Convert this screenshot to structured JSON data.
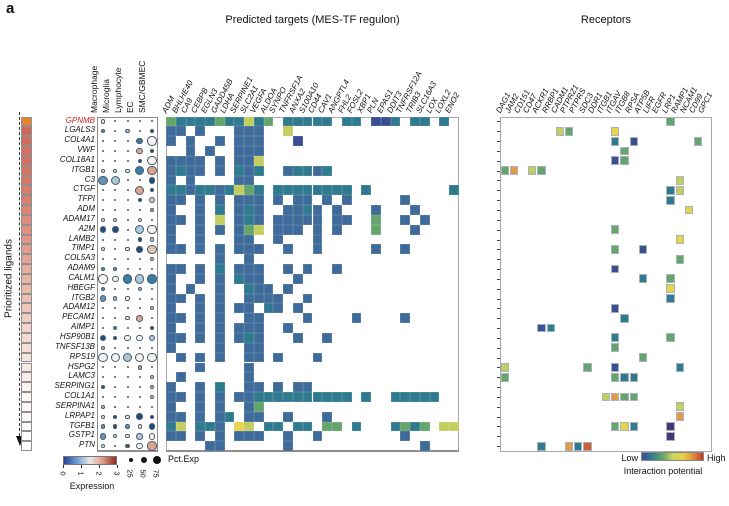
{
  "panel_label": "a",
  "titles": {
    "targets": "Predicted targets (MES-TF regulon)",
    "receptors": "Receptors"
  },
  "left_axis": {
    "label": "Prioritized ligands"
  },
  "legends": {
    "expression": {
      "label": "Expression",
      "ticks": [
        "0",
        "1",
        "2",
        "3"
      ]
    },
    "pct": {
      "label": "Pct.Exp",
      "sizes": [
        "25",
        "50",
        "75"
      ]
    },
    "interaction": {
      "label": "Interaction potential",
      "low": "Low",
      "high": "High"
    }
  },
  "colors": {
    "highlight": "#c8281e",
    "heat": {
      "b": "#3e6b9a",
      "t": "#2f7a8e",
      "n": "#3a4f92",
      "g": "#65a46c",
      "y": "#c3cd60",
      "Y": "#e6d44d",
      "o": "#e29a4b",
      "r": "#d05c35",
      "p": "#46397a"
    },
    "dot": {
      "W": "#f4f3f1",
      "L": "#aac8dc",
      "B": "#6292ba",
      "T": "#3a7da2",
      "D": "#1d4c80",
      "P": "#dda291",
      "N": "#dcc8b4",
      "G": "#555555"
    },
    "expression_gradient": [
      "#27418e",
      "#6f9fd8",
      "#eceae8",
      "#d99a82",
      "#8e2a1a"
    ],
    "interaction_gradient": [
      "#3a4f92",
      "#2f7d8e",
      "#62a36a",
      "#c9d05e",
      "#e8d44a",
      "#e0923e",
      "#c93524"
    ],
    "priority_stops": [
      "#e8822e",
      "#d2685a",
      "#d67767",
      "#e09483",
      "#eab9a8",
      "#f4ddd3",
      "#fcf7f4",
      "#ffffff"
    ]
  },
  "chart_data": [
    {
      "type": "scatter",
      "name": "ligand-expression-dotplot",
      "cell_types": [
        "Macrophage",
        "Microglia",
        "Lymphocyte",
        "EC",
        "SMC/GBMEC"
      ],
      "highlight_ligand": "GPNMB",
      "ligands": [
        "GPNMB",
        "LGALS3",
        "COL4A1",
        "VWF",
        "COL18A1",
        "ITGB1",
        "C3",
        "CTGF",
        "TFPI",
        "ADM",
        "ADAM17",
        "A2M",
        "LAMB2",
        "TIMP1",
        "COL5A3",
        "ADAM9",
        "CALM1",
        "HBEGF",
        "ITGB2",
        "ADAM12",
        "PECAM1",
        "AIMP1",
        "HSP90B1",
        "TNFSF13B",
        "RPS19",
        "HSPG2",
        "LAMC3",
        "SERPING1",
        "COL1A1",
        "SERPINA1",
        "LRPAP1",
        "TGFB1",
        "GSTP1",
        "PTN"
      ],
      "dots": [
        [
          "1W",
          "0G",
          "0G",
          "0G",
          "0G"
        ],
        [
          "1B",
          "0G",
          "1L",
          "0G",
          "1D"
        ],
        [
          "0G",
          "0G",
          "0G",
          "2T",
          "3W"
        ],
        [
          "0G",
          "0G",
          "0G",
          "2P",
          "1D"
        ],
        [
          "0G",
          "0G",
          "0G",
          "1D",
          "3W"
        ],
        [
          "1W",
          "1W",
          "1W",
          "3T",
          "3P"
        ],
        [
          "3B",
          "3L",
          "0G",
          "0G",
          "2D"
        ],
        [
          "0G",
          "0G",
          "0G",
          "3P",
          "1D"
        ],
        [
          "0G",
          "0G",
          "0G",
          "1D",
          "2N"
        ],
        [
          "0G",
          "0G",
          "0G",
          "0G",
          "1P"
        ],
        [
          "1W",
          "1W",
          "0G",
          "1W",
          "0G"
        ],
        [
          "2D",
          "2D",
          "0G",
          "3L",
          "3W"
        ],
        [
          "0G",
          "0G",
          "0G",
          "1D",
          "1N"
        ],
        [
          "1W",
          "0G",
          "1W",
          "2D",
          "3N"
        ],
        [
          "0G",
          "0G",
          "0G",
          "0G",
          "1N"
        ],
        [
          "1B",
          "1B",
          "0G",
          "0G",
          "0G"
        ],
        [
          "3W",
          "2W",
          "3T",
          "3L",
          "3T"
        ],
        [
          "1B",
          "0G",
          "0G",
          "1L",
          "0G"
        ],
        [
          "2B",
          "1L",
          "1W",
          "0G",
          "0G"
        ],
        [
          "0G",
          "0G",
          "0G",
          "0G",
          "1N"
        ],
        [
          "0G",
          "0G",
          "1W",
          "2P",
          "0G"
        ],
        [
          "0G",
          "1B",
          "0G",
          "0G",
          "1D"
        ],
        [
          "2D",
          "1D",
          "2W",
          "2W",
          "2L"
        ],
        [
          "1N",
          "0G",
          "0G",
          "0G",
          "0G"
        ],
        [
          "3W",
          "3W",
          "3L",
          "3W",
          "3W"
        ],
        [
          "0G",
          "0G",
          "0G",
          "1P",
          "0G"
        ],
        [
          "0G",
          "0G",
          "0G",
          "0G",
          "1N"
        ],
        [
          "1D",
          "0G",
          "0G",
          "0G",
          "1P"
        ],
        [
          "0G",
          "0G",
          "0G",
          "0G",
          "1N"
        ],
        [
          "1L",
          "0D",
          "0G",
          "0G",
          "0G"
        ],
        [
          "1W",
          "1D",
          "1W",
          "2D",
          "1D"
        ],
        [
          "1B",
          "1D",
          "1B",
          "1W",
          "2D"
        ],
        [
          "2B",
          "1W",
          "1W",
          "2L",
          "2W"
        ],
        [
          "1W",
          "0G",
          "1G",
          "2W",
          "3P"
        ]
      ]
    },
    {
      "type": "heatmap",
      "name": "predicted-targets-heatmap",
      "title": "Predicted targets (MES-TF regulon)",
      "scale": "interaction potential (Low to High)",
      "columns": [
        "ADM",
        "BHLHE40",
        "CA9",
        "CEBPB",
        "EGLN3",
        "GADD45B",
        "LDHA",
        "SERPINE1",
        "SLC2A1",
        "VEGFA",
        "ALDOA",
        "SYNPO",
        "TNFRSF1A",
        "ANXA2",
        "S100A10",
        "CD44",
        "CAV1",
        "ANGPTL4",
        "FHL2",
        "FOSL2",
        "XBP1",
        "PLN",
        "EPAS1",
        "DDIT3",
        "TNFRSF12A",
        "TRIB3",
        "SLC16A3",
        "LOX",
        "LOXL2",
        "ENO2"
      ],
      "matrix": [
        "gttttgttytg.ttttt.tt.nnt.tt.t.",
        "bb.b...bbb..y.................",
        "b.b..b.bbb...n................",
        "..b.b..bbb....................",
        "bbbb.b.bby....................",
        "btbb.b.tbt..bttbt.............",
        "b.b....bb.....................",
        "ttbttbtygt.tttttttt.t........t",
        "bb.b.b.bbb.b.bb.b.b.....b.....",
        "b..b.t.btb..bbtb.b...b...b....",
        "bb.b.y.btb.bbbbb.bb..g..b.b...",
        "b..b.b.bgy.bbb.b.b...g...b....",
        "b..b...bb..b...b..............",
        "bb.b.b.bbb..b..b.....b..b.....",
        ".....b..b.....................",
        "bb.b.t.bbb..b.b..b............",
        "b..b.b.tbb...b................",
        "b.b..b..tbb.b.................",
        "bb.b.b..bbbb..b...............",
        "b..b.b.bb.tb.b................",
        "bb.b.b..bb....b....b....b.....",
        "b..b.b.bbb..b.................",
        "bb.b.b.btb...b..b.............",
        "b....b..bb....................",
        ".b.b.b..bb.b...b..............",
        "...b....b.....................",
        ".b......b.....................",
        "b..b.t..bb.b.bb...............",
        "bb.b.b.bbtttttttttt.t..ttttt..",
        "b..b.b..bg....................",
        "bb.b.bt.bb..b...b.............",
        "ty.ttb.Yy.tt.tt.gg.t...tgtg.yy",
        "bb.b.b.bbb..b..b........b.....",
        "....bb......b.............b..."
      ]
    },
    {
      "type": "heatmap",
      "name": "receptors-heatmap",
      "title": "Receptors",
      "scale": "interaction potential (Low to High)",
      "columns": [
        "DAG1",
        "JAM2",
        "CD151",
        "CD47",
        "ACKR1",
        "RRBP1",
        "CADM1",
        "PTPRZ1",
        "PTPRS",
        "SDC3",
        "DDR1",
        "ITGB1",
        "ITGAV",
        "ITGB8",
        "RPSA",
        "ATP5B",
        "LIFR",
        "EGFR",
        "LRP1",
        "RAMP1",
        "NCAM1",
        "CD99",
        "GPC1"
      ],
      "cells": [
        [
          1,
          19,
          "g"
        ],
        [
          2,
          7,
          "y"
        ],
        [
          2,
          8,
          "g"
        ],
        [
          2,
          13,
          "Y"
        ],
        [
          3,
          13,
          "t"
        ],
        [
          3,
          15,
          "n"
        ],
        [
          3,
          22,
          "g"
        ],
        [
          4,
          14,
          "g"
        ],
        [
          5,
          13,
          "n"
        ],
        [
          5,
          14,
          "g"
        ],
        [
          6,
          1,
          "g"
        ],
        [
          6,
          2,
          "o"
        ],
        [
          6,
          4,
          "y"
        ],
        [
          6,
          5,
          "g"
        ],
        [
          7,
          20,
          "y"
        ],
        [
          8,
          19,
          "t"
        ],
        [
          8,
          20,
          "y"
        ],
        [
          9,
          19,
          "t"
        ],
        [
          10,
          21,
          "Y"
        ],
        [
          12,
          13,
          "g"
        ],
        [
          13,
          20,
          "Y"
        ],
        [
          14,
          13,
          "g"
        ],
        [
          14,
          16,
          "n"
        ],
        [
          15,
          20,
          "g"
        ],
        [
          16,
          13,
          "n"
        ],
        [
          17,
          16,
          "t"
        ],
        [
          17,
          19,
          "g"
        ],
        [
          18,
          19,
          "Y"
        ],
        [
          19,
          19,
          "t"
        ],
        [
          20,
          13,
          "n"
        ],
        [
          21,
          14,
          "t"
        ],
        [
          22,
          5,
          "n"
        ],
        [
          22,
          6,
          "t"
        ],
        [
          23,
          13,
          "t"
        ],
        [
          23,
          19,
          "g"
        ],
        [
          24,
          13,
          "g"
        ],
        [
          25,
          16,
          "g"
        ],
        [
          26,
          1,
          "y"
        ],
        [
          26,
          10,
          "g"
        ],
        [
          26,
          13,
          "n"
        ],
        [
          26,
          20,
          "t"
        ],
        [
          27,
          1,
          "g"
        ],
        [
          27,
          13,
          "g"
        ],
        [
          27,
          14,
          "t"
        ],
        [
          27,
          15,
          "t"
        ],
        [
          29,
          12,
          "y"
        ],
        [
          29,
          13,
          "o"
        ],
        [
          29,
          14,
          "g"
        ],
        [
          29,
          15,
          "g"
        ],
        [
          30,
          20,
          "y"
        ],
        [
          31,
          20,
          "o"
        ],
        [
          32,
          13,
          "g"
        ],
        [
          32,
          14,
          "Y"
        ],
        [
          32,
          15,
          "t"
        ],
        [
          32,
          19,
          "p"
        ],
        [
          33,
          19,
          "p"
        ],
        [
          34,
          5,
          "t"
        ],
        [
          34,
          8,
          "o"
        ],
        [
          34,
          9,
          "t"
        ],
        [
          34,
          10,
          "r"
        ]
      ]
    }
  ]
}
